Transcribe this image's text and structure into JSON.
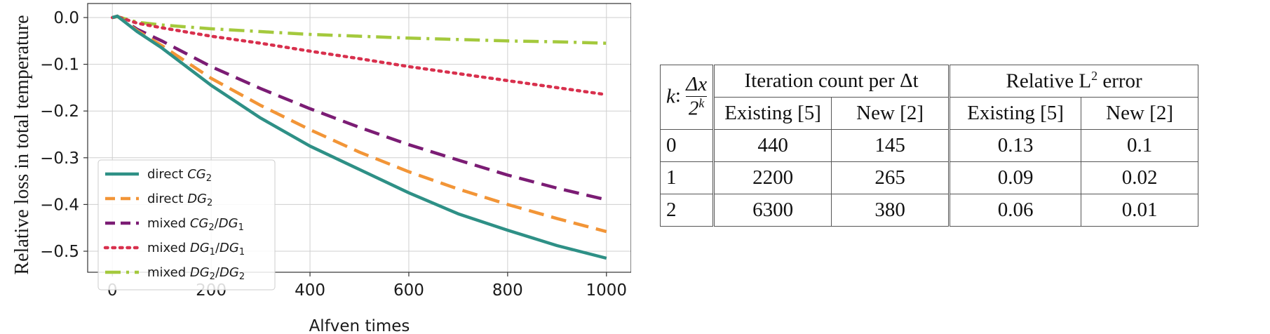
{
  "chart_data": {
    "type": "line",
    "xlabel": "Alfven times",
    "ylabel": "Relative loss in total temperature",
    "xlim": [
      -50,
      1050
    ],
    "ylim": [
      -0.545,
      0.03
    ],
    "xticks": [
      0,
      200,
      400,
      600,
      800,
      1000
    ],
    "xtick_labels": [
      "0",
      "200",
      "400",
      "600",
      "800",
      "1000"
    ],
    "yticks": [
      0.0,
      -0.1,
      -0.2,
      -0.3,
      -0.4,
      -0.5
    ],
    "ytick_labels": [
      "0.0",
      "−0.1",
      "−0.2",
      "−0.3",
      "−0.4",
      "−0.5"
    ],
    "grid": true,
    "legend_position": "lower-left",
    "series": [
      {
        "prefix": "direct ",
        "name": "CG",
        "sub": "2",
        "color": "#2e9086",
        "style": "solid",
        "x": [
          0,
          10,
          50,
          100,
          200,
          300,
          400,
          500,
          600,
          700,
          800,
          900,
          1000
        ],
        "y": [
          0.0,
          0.003,
          -0.03,
          -0.065,
          -0.145,
          -0.215,
          -0.275,
          -0.325,
          -0.375,
          -0.42,
          -0.455,
          -0.488,
          -0.515
        ]
      },
      {
        "prefix": "direct ",
        "name": "DG",
        "sub": "2",
        "color": "#f29537",
        "style": "dash",
        "x": [
          0,
          10,
          50,
          100,
          200,
          300,
          400,
          500,
          600,
          700,
          800,
          900,
          1000
        ],
        "y": [
          0.0,
          0.003,
          -0.028,
          -0.06,
          -0.13,
          -0.188,
          -0.24,
          -0.288,
          -0.33,
          -0.367,
          -0.4,
          -0.43,
          -0.458
        ]
      },
      {
        "prefix": "mixed ",
        "name": "CG",
        "sub": "2",
        "name2": "DG",
        "sub2": "1",
        "color": "#7b1c74",
        "style": "dash",
        "x": [
          0,
          10,
          50,
          100,
          200,
          300,
          400,
          500,
          600,
          700,
          800,
          900,
          1000
        ],
        "y": [
          0.0,
          0.003,
          -0.025,
          -0.05,
          -0.105,
          -0.152,
          -0.195,
          -0.235,
          -0.272,
          -0.305,
          -0.337,
          -0.365,
          -0.39
        ]
      },
      {
        "prefix": "mixed ",
        "name": "DG",
        "sub": "1",
        "name2": "DG",
        "sub2": "1",
        "color": "#d8304d",
        "style": "dot",
        "x": [
          0,
          10,
          50,
          100,
          200,
          300,
          400,
          500,
          600,
          700,
          800,
          900,
          1000
        ],
        "y": [
          0.0,
          0.002,
          -0.012,
          -0.022,
          -0.04,
          -0.055,
          -0.072,
          -0.088,
          -0.105,
          -0.12,
          -0.135,
          -0.15,
          -0.165
        ]
      },
      {
        "prefix": "mixed ",
        "name": "DG",
        "sub": "2",
        "name2": "DG",
        "sub2": "2",
        "color": "#a4c93d",
        "style": "dashdot",
        "x": [
          0,
          10,
          50,
          100,
          200,
          300,
          400,
          500,
          600,
          700,
          800,
          900,
          1000
        ],
        "y": [
          0.0,
          0.002,
          -0.01,
          -0.016,
          -0.024,
          -0.03,
          -0.036,
          -0.04,
          -0.044,
          -0.047,
          -0.05,
          -0.052,
          -0.055
        ]
      }
    ]
  },
  "table": {
    "k_label": "k",
    "frac_num": "Δx",
    "frac_den": "2",
    "frac_den_sup": "k",
    "group1": "Iteration count per Δt",
    "group2_pre": "Relative L",
    "group2_sup": "2",
    "group2_post": " error",
    "sub_headers": [
      "Existing [5]",
      "New [2]",
      "Existing [5]",
      "New [2]"
    ],
    "rows": [
      [
        "0",
        "440",
        "145",
        "0.13",
        "0.1"
      ],
      [
        "1",
        "2200",
        "265",
        "0.09",
        "0.02"
      ],
      [
        "2",
        "6300",
        "380",
        "0.06",
        "0.01"
      ]
    ]
  }
}
